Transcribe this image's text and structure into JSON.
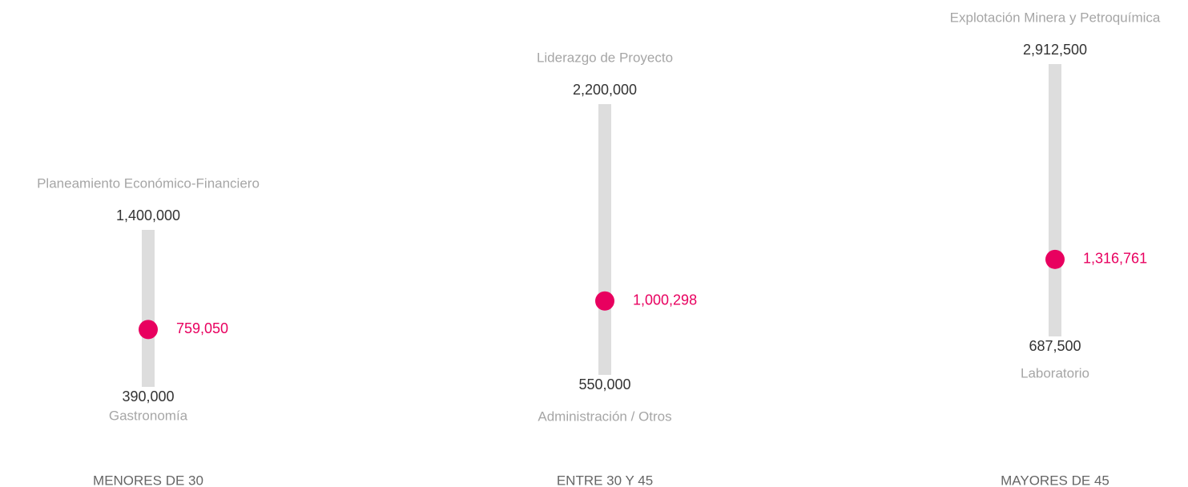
{
  "chart_data": {
    "type": "range",
    "categories": [
      "MENORES DE 30",
      "ENTRE 30 Y 45",
      "MAYORES DE 45"
    ],
    "max": {
      "values": [
        1400000,
        2200000,
        2912500
      ],
      "value_labels": [
        "1,400,000",
        "2,200,000",
        "2,912,500"
      ],
      "labels": [
        "Planeamiento Económico-Financiero",
        "Liderazgo de Proyecto",
        "Explotación Minera y Petroquímica"
      ]
    },
    "min": {
      "values": [
        390000,
        550000,
        687500
      ],
      "value_labels": [
        "390,000",
        "550,000",
        "687,500"
      ],
      "labels": [
        "Gastronomía",
        "Administración / Otros",
        "Laboratorio"
      ]
    },
    "avg": {
      "values": [
        759050,
        1000298,
        1316761
      ],
      "value_labels": [
        "759,050",
        "1,000,298",
        "1,316,761"
      ],
      "color": "#e8005f"
    },
    "track_color": "#dddddd"
  }
}
